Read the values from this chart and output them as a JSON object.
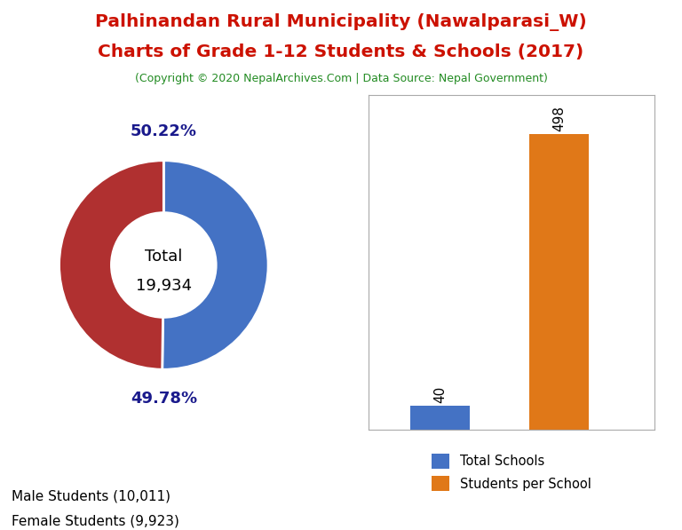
{
  "title_line1": "Palhinandan Rural Municipality (Nawalparasi_W)",
  "title_line2": "Charts of Grade 1-12 Students & Schools (2017)",
  "subtitle": "(Copyright © 2020 NepalArchives.Com | Data Source: Nepal Government)",
  "title_color": "#cc1100",
  "subtitle_color": "#228B22",
  "male_students": 10011,
  "female_students": 9923,
  "total_students": 19934,
  "male_pct": "50.22%",
  "female_pct": "49.78%",
  "male_color": "#4472c4",
  "female_color": "#b03030",
  "pct_color": "#1a1a8c",
  "donut_label_line1": "Total",
  "donut_label_line2": "19,934",
  "bar_values": [
    40,
    498
  ],
  "bar_colors": [
    "#4472c4",
    "#e07818"
  ],
  "legend_pie": [
    {
      "label": "Male Students (10,011)",
      "color": "#4472c4"
    },
    {
      "label": "Female Students (9,923)",
      "color": "#b03030"
    }
  ],
  "legend_bar": [
    {
      "label": "Total Schools",
      "color": "#4472c4"
    },
    {
      "label": "Students per School",
      "color": "#e07818"
    }
  ],
  "bg_color": "#ffffff"
}
